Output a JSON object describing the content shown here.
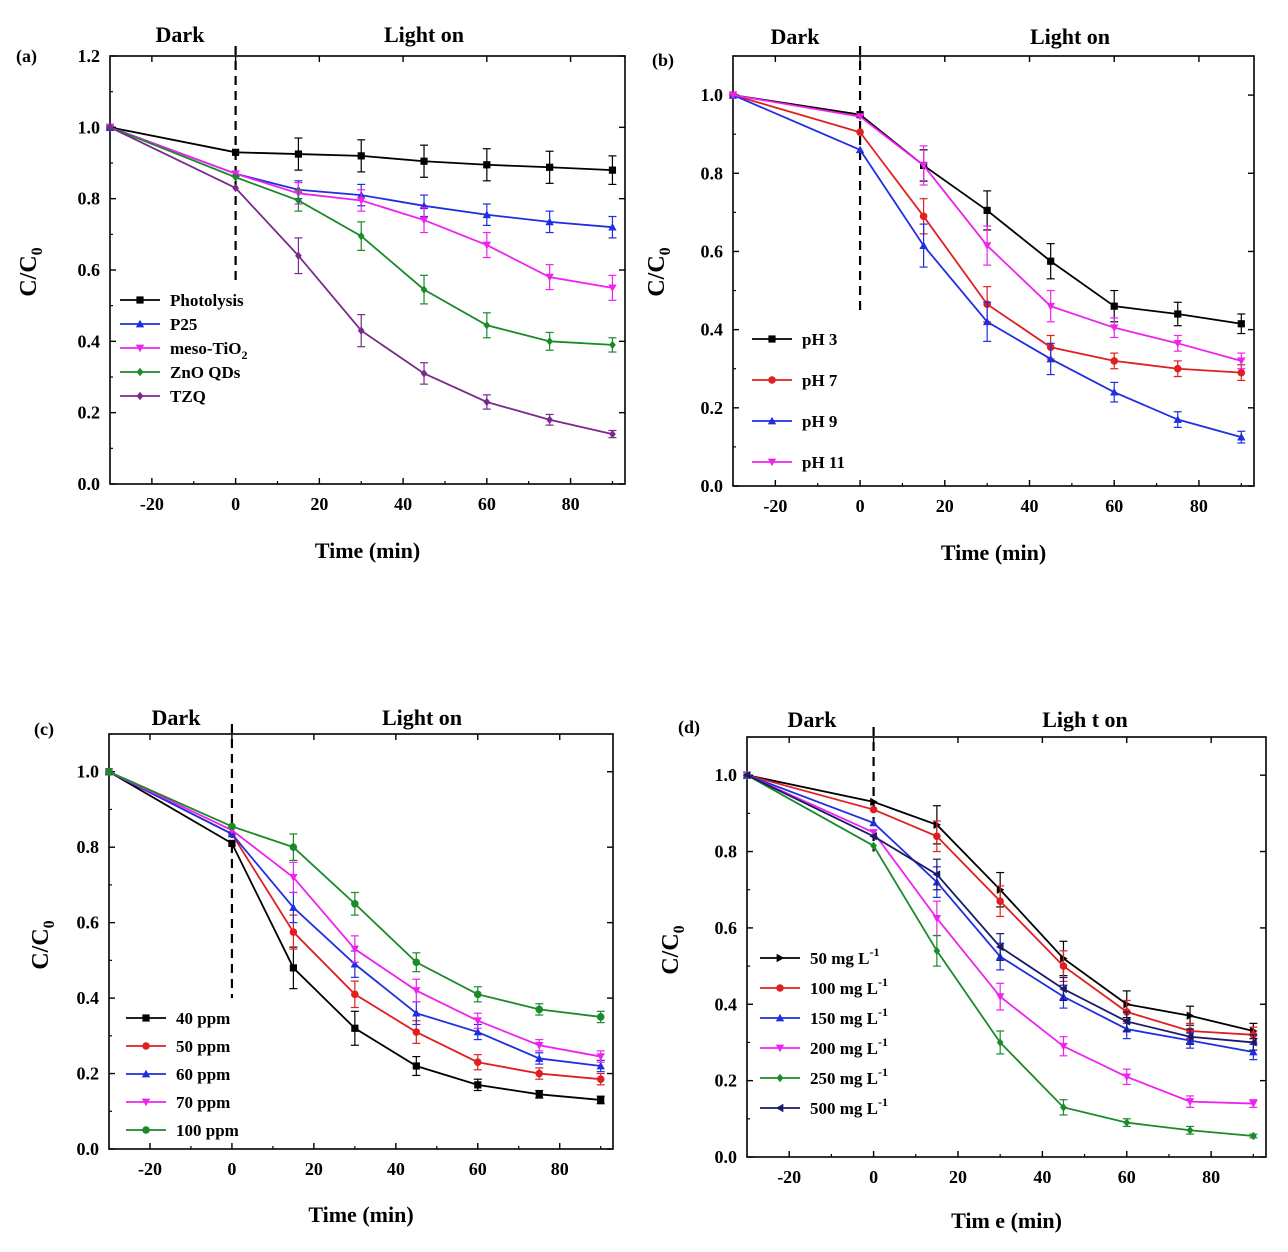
{
  "chart_data": [
    {
      "id": "a",
      "panel_label": "(a)",
      "type": "line",
      "dark_label": "Dark",
      "light_label": "Light on",
      "xlabel": "Time (min)",
      "ylabel": {
        "main": "C/C",
        "sub": "0"
      },
      "xlim": [
        -30,
        93
      ],
      "ylim": [
        0,
        1.2
      ],
      "xticks": [
        -20,
        0,
        20,
        40,
        60,
        80
      ],
      "yticks": [
        0.0,
        0.2,
        0.4,
        0.6,
        0.8,
        1.0,
        1.2
      ],
      "ytick_labels": [
        "0.0",
        "0.2",
        "0.4",
        "0.6",
        "0.8",
        "1.0",
        "1.2"
      ],
      "divider_x": 0,
      "x": [
        -30,
        0,
        15,
        30,
        45,
        60,
        75,
        90
      ],
      "legend_position": "middle-left",
      "series": [
        {
          "name": "Photolysis",
          "color": "#000000",
          "marker": "square",
          "values": [
            1.0,
            0.93,
            0.925,
            0.92,
            0.905,
            0.895,
            0.888,
            0.88
          ],
          "err": [
            0,
            0,
            0.045,
            0.045,
            0.045,
            0.045,
            0.045,
            0.04
          ]
        },
        {
          "name": "P25",
          "sub": "",
          "color": "#1f2fe0",
          "marker": "triangle-up",
          "values": [
            1.0,
            0.87,
            0.825,
            0.81,
            0.78,
            0.755,
            0.735,
            0.72
          ],
          "err": [
            0,
            0,
            0.025,
            0.03,
            0.03,
            0.03,
            0.03,
            0.03
          ]
        },
        {
          "name": "meso-TiO",
          "sub": "2",
          "color": "#ee22ee",
          "marker": "triangle-down",
          "values": [
            1.0,
            0.87,
            0.815,
            0.795,
            0.74,
            0.67,
            0.58,
            0.55
          ],
          "err": [
            0,
            0,
            0.03,
            0.03,
            0.035,
            0.035,
            0.035,
            0.035
          ]
        },
        {
          "name": "ZnO QDs",
          "color": "#1a8a2a",
          "marker": "diamond",
          "values": [
            1.0,
            0.86,
            0.795,
            0.695,
            0.545,
            0.445,
            0.4,
            0.39
          ],
          "err": [
            0,
            0,
            0.03,
            0.04,
            0.04,
            0.035,
            0.025,
            0.02
          ]
        },
        {
          "name": "TZQ",
          "color": "#7a2a8a",
          "marker": "diamond",
          "values": [
            1.0,
            0.83,
            0.64,
            0.43,
            0.31,
            0.23,
            0.18,
            0.14
          ],
          "err": [
            0,
            0,
            0.05,
            0.045,
            0.03,
            0.02,
            0.015,
            0.01
          ]
        }
      ]
    },
    {
      "id": "b",
      "panel_label": "(b)",
      "type": "line",
      "dark_label": "Dark",
      "light_label": "Light on",
      "xlabel": "Time (min)",
      "ylabel": {
        "main": "C/C",
        "sub": "0"
      },
      "xlim": [
        -30,
        93
      ],
      "ylim": [
        0,
        1.1
      ],
      "xticks": [
        -20,
        0,
        20,
        40,
        60,
        80
      ],
      "yticks": [
        0.0,
        0.2,
        0.4,
        0.6,
        0.8,
        1.0
      ],
      "ytick_labels": [
        "0.0",
        "0.2",
        "0.4",
        "0.6",
        "0.8",
        "1.0"
      ],
      "divider_x": 0,
      "x": [
        -30,
        0,
        15,
        30,
        45,
        60,
        75,
        90
      ],
      "legend_position": "bottom-left",
      "series": [
        {
          "name": "pH 3",
          "color": "#000000",
          "marker": "square",
          "values": [
            1.0,
            0.95,
            0.82,
            0.705,
            0.575,
            0.46,
            0.44,
            0.415
          ],
          "err": [
            0,
            0,
            0.04,
            0.05,
            0.045,
            0.04,
            0.03,
            0.025
          ]
        },
        {
          "name": "pH 7",
          "color": "#e02020",
          "marker": "circle",
          "values": [
            1.0,
            0.905,
            0.69,
            0.465,
            0.355,
            0.32,
            0.3,
            0.29
          ],
          "err": [
            0,
            0,
            0.045,
            0.045,
            0.03,
            0.02,
            0.02,
            0.02
          ]
        },
        {
          "name": "pH 9",
          "color": "#1f2fe0",
          "marker": "triangle-up",
          "values": [
            1.0,
            0.86,
            0.615,
            0.42,
            0.325,
            0.24,
            0.17,
            0.125
          ],
          "err": [
            0,
            0,
            0.055,
            0.05,
            0.04,
            0.025,
            0.02,
            0.015
          ]
        },
        {
          "name": "pH 11",
          "color": "#ee22ee",
          "marker": "triangle-down",
          "values": [
            1.0,
            0.945,
            0.82,
            0.615,
            0.46,
            0.405,
            0.365,
            0.32
          ],
          "err": [
            0,
            0,
            0.05,
            0.05,
            0.04,
            0.025,
            0.02,
            0.02
          ]
        }
      ]
    },
    {
      "id": "c",
      "panel_label": "(c)",
      "type": "line",
      "dark_label": "Dark",
      "light_label": "Light on",
      "xlabel": "Time (min)",
      "ylabel": {
        "main": "C/C",
        "sub": "0"
      },
      "xlim": [
        -30,
        93
      ],
      "ylim": [
        0,
        1.1
      ],
      "xticks": [
        -20,
        0,
        20,
        40,
        60,
        80
      ],
      "yticks": [
        0.0,
        0.2,
        0.4,
        0.6,
        0.8,
        1.0
      ],
      "ytick_labels": [
        "0.0",
        "0.2",
        "0.4",
        "0.6",
        "0.8",
        "1.0"
      ],
      "divider_x": 0,
      "x": [
        -30,
        0,
        15,
        30,
        45,
        60,
        75,
        90
      ],
      "legend_position": "bottom-left",
      "series": [
        {
          "name": "40 ppm",
          "color": "#000000",
          "marker": "square",
          "values": [
            1.0,
            0.81,
            0.48,
            0.32,
            0.22,
            0.17,
            0.145,
            0.13
          ],
          "err": [
            0,
            0,
            0.055,
            0.045,
            0.025,
            0.015,
            0.01,
            0.01
          ]
        },
        {
          "name": "50 ppm",
          "color": "#e02020",
          "marker": "circle",
          "values": [
            1.0,
            0.835,
            0.575,
            0.41,
            0.31,
            0.23,
            0.2,
            0.185
          ],
          "err": [
            0,
            0,
            0.045,
            0.035,
            0.03,
            0.02,
            0.015,
            0.015
          ]
        },
        {
          "name": "60 ppm",
          "color": "#1f2fe0",
          "marker": "triangle-up",
          "values": [
            1.0,
            0.835,
            0.64,
            0.49,
            0.36,
            0.31,
            0.24,
            0.22
          ],
          "err": [
            0,
            0,
            0.04,
            0.035,
            0.03,
            0.02,
            0.015,
            0.015
          ]
        },
        {
          "name": "70 ppm",
          "color": "#ee22ee",
          "marker": "triangle-down",
          "values": [
            1.0,
            0.845,
            0.72,
            0.53,
            0.42,
            0.34,
            0.275,
            0.245
          ],
          "err": [
            0,
            0,
            0.04,
            0.035,
            0.03,
            0.02,
            0.015,
            0.015
          ]
        },
        {
          "name": "100 ppm",
          "color": "#1a8a2a",
          "marker": "circle",
          "values": [
            1.0,
            0.855,
            0.8,
            0.65,
            0.495,
            0.41,
            0.37,
            0.35
          ],
          "err": [
            0,
            0,
            0.035,
            0.03,
            0.025,
            0.02,
            0.015,
            0.015
          ]
        }
      ]
    },
    {
      "id": "d",
      "panel_label": "(d)",
      "type": "line",
      "dark_label": "Dark",
      "light_label": "Ligh t on",
      "xlabel": "Tim e (min)",
      "ylabel": {
        "main": "C/C",
        "sub": "0"
      },
      "xlim": [
        -30,
        93
      ],
      "ylim": [
        0,
        1.1
      ],
      "xticks": [
        -20,
        0,
        20,
        40,
        60,
        80
      ],
      "yticks": [
        0.0,
        0.2,
        0.4,
        0.6,
        0.8,
        1.0
      ],
      "ytick_labels": [
        "0.0",
        "0.2",
        "0.4",
        "0.6",
        "0.8",
        "1.0"
      ],
      "divider_x": 0,
      "x": [
        -30,
        0,
        15,
        30,
        45,
        60,
        75,
        90
      ],
      "legend_position": "bottom-left",
      "series": [
        {
          "name": "50 mg L",
          "sup": "-1",
          "color": "#000000",
          "marker": "tri-right",
          "values": [
            1.0,
            0.93,
            0.87,
            0.7,
            0.52,
            0.4,
            0.37,
            0.33
          ],
          "err": [
            0,
            0,
            0.05,
            0.045,
            0.045,
            0.035,
            0.025,
            0.02
          ]
        },
        {
          "name": "100 mg L",
          "sup": "-1",
          "color": "#e02020",
          "marker": "circle",
          "values": [
            1.0,
            0.91,
            0.84,
            0.67,
            0.5,
            0.38,
            0.33,
            0.32
          ],
          "err": [
            0,
            0,
            0.04,
            0.04,
            0.04,
            0.03,
            0.02,
            0.02
          ]
        },
        {
          "name": "150 mg L",
          "sup": "-1",
          "color": "#1f2fe0",
          "marker": "triangle-up",
          "values": [
            1.0,
            0.875,
            0.72,
            0.525,
            0.42,
            0.335,
            0.305,
            0.275
          ],
          "err": [
            0,
            0,
            0.04,
            0.035,
            0.03,
            0.025,
            0.02,
            0.02
          ]
        },
        {
          "name": "200 mg L",
          "sup": "-1",
          "color": "#ee22ee",
          "marker": "triangle-down",
          "values": [
            1.0,
            0.85,
            0.625,
            0.42,
            0.29,
            0.21,
            0.145,
            0.14
          ],
          "err": [
            0,
            0,
            0.045,
            0.035,
            0.025,
            0.02,
            0.015,
            0.01
          ]
        },
        {
          "name": "250 mg L",
          "sup": "-1",
          "color": "#1a8a2a",
          "marker": "diamond",
          "values": [
            1.0,
            0.815,
            0.54,
            0.3,
            0.13,
            0.09,
            0.07,
            0.055
          ],
          "err": [
            0,
            0,
            0.04,
            0.03,
            0.02,
            0.01,
            0.01,
            0.005
          ]
        },
        {
          "name": "500 mg L",
          "sup": "-1",
          "color": "#1a1a6a",
          "marker": "tri-left",
          "values": [
            1.0,
            0.84,
            0.74,
            0.55,
            0.44,
            0.355,
            0.315,
            0.3
          ],
          "err": [
            0,
            0,
            0.04,
            0.035,
            0.03,
            0.025,
            0.02,
            0.02
          ]
        }
      ]
    }
  ]
}
